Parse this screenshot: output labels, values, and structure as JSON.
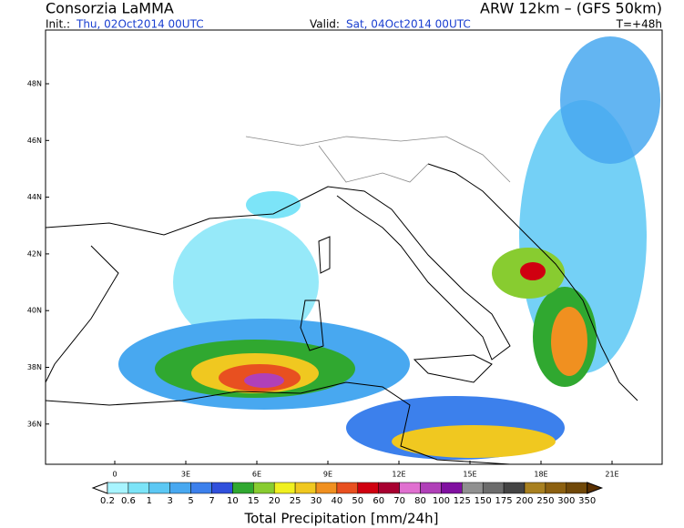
{
  "header": {
    "title": "Consorzia LaMMA",
    "model": "ARW 12km  –  (GFS 50km)",
    "init_label": "Init.:",
    "init": "Thu, 02Oct2014 00UTC",
    "valid_label": "Valid:",
    "valid": "Sat, 04Oct2014 00UTC",
    "lead": "T=+48h"
  },
  "map": {
    "lat_labels": [
      "48N",
      "46N",
      "44N",
      "42N",
      "40N",
      "38N",
      "36N"
    ],
    "lon_labels": [
      "0",
      "3E",
      "6E",
      "9E",
      "12E",
      "15E",
      "18E",
      "21E"
    ]
  },
  "colorbar": {
    "levels": [
      "0.2",
      "0.6",
      "1",
      "3",
      "5",
      "7",
      "10",
      "15",
      "20",
      "25",
      "30",
      "40",
      "50",
      "60",
      "70",
      "80",
      "100",
      "125",
      "150",
      "175",
      "200",
      "250",
      "300",
      "350"
    ],
    "colors": [
      "#a8f4ff",
      "#7ce4f8",
      "#5cc8f4",
      "#48a8f0",
      "#3c80ec",
      "#3050dc",
      "#30a830",
      "#88cc30",
      "#f0f020",
      "#f0c820",
      "#f09020",
      "#e85020",
      "#d00010",
      "#a80030",
      "#e070d0",
      "#b040b8",
      "#8010a0",
      "#909090",
      "#6c6c6c",
      "#444444",
      "#a88020",
      "#8c6010",
      "#704808"
    ],
    "under_color": "#ffffff",
    "over_color": "#5a3000",
    "label": "Total Precipitation [mm/24h]"
  }
}
